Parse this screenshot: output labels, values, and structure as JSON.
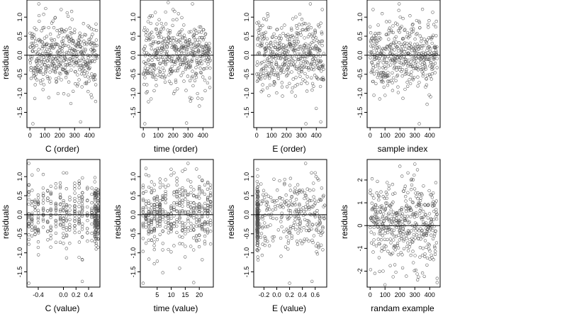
{
  "chart_data": [
    {
      "type": "scatter",
      "xlabel": "C (order)",
      "ylabel": "residuals",
      "xlim": [
        -20,
        470
      ],
      "ylim": [
        -1.9,
        1.45
      ],
      "xticks": [
        0,
        100,
        200,
        300,
        400
      ],
      "yticks": [
        -1.5,
        -1.0,
        -0.5,
        0.0,
        0.5,
        1.0
      ],
      "ytick_labels": [
        "-1.5",
        "-1.0",
        "-0.5",
        "0.0",
        "0.5",
        "1.0"
      ],
      "hline": 0,
      "cloud": {
        "seed": 11,
        "n": 440,
        "x_range": [
          0,
          450
        ],
        "mean": 0.0,
        "sd": 0.45,
        "pattern": "order",
        "extremes": [
          [
            20,
            -1.8
          ],
          [
            340,
            -1.75
          ],
          [
            60,
            1.35
          ],
          [
            210,
            1.2
          ],
          [
            280,
            1.15
          ]
        ]
      }
    },
    {
      "type": "scatter",
      "xlabel": "time (order)",
      "ylabel": "residuals",
      "xlim": [
        -20,
        470
      ],
      "ylim": [
        -1.9,
        1.45
      ],
      "xticks": [
        0,
        100,
        200,
        300,
        400
      ],
      "yticks": [
        -1.5,
        -1.0,
        -0.5,
        0.0,
        0.5,
        1.0
      ],
      "ytick_labels": [
        "-1.5",
        "-1.0",
        "-0.5",
        "0.0",
        "0.5",
        "1.0"
      ],
      "hline": 0,
      "cloud": {
        "seed": 23,
        "n": 440,
        "x_range": [
          0,
          450
        ],
        "mean": 0.0,
        "sd": 0.45,
        "pattern": "order",
        "extremes": [
          [
            10,
            -1.8
          ],
          [
            290,
            -1.78
          ],
          [
            330,
            1.35
          ],
          [
            200,
            1.2
          ]
        ]
      }
    },
    {
      "type": "scatter",
      "xlabel": "E (order)",
      "ylabel": "residuals",
      "xlim": [
        -20,
        470
      ],
      "ylim": [
        -1.9,
        1.45
      ],
      "xticks": [
        0,
        100,
        200,
        300,
        400
      ],
      "yticks": [
        -1.5,
        -1.0,
        -0.5,
        0.0,
        0.5,
        1.0
      ],
      "ytick_labels": [
        "-1.5",
        "-1.0",
        "-0.5",
        "0.0",
        "0.5",
        "1.0"
      ],
      "hline": 0,
      "cloud": {
        "seed": 37,
        "n": 440,
        "x_range": [
          0,
          450
        ],
        "mean": 0.0,
        "sd": 0.45,
        "pattern": "order",
        "extremes": [
          [
            330,
            -1.8
          ],
          [
            430,
            -1.75
          ],
          [
            360,
            1.35
          ],
          [
            440,
            1.2
          ]
        ]
      }
    },
    {
      "type": "scatter",
      "xlabel": "sample index",
      "ylabel": "residuals",
      "xlim": [
        -20,
        470
      ],
      "ylim": [
        -1.9,
        1.45
      ],
      "xticks": [
        0,
        100,
        200,
        300,
        400
      ],
      "yticks": [
        -1.5,
        -1.0,
        -0.5,
        0.0,
        0.5,
        1.0
      ],
      "ytick_labels": [
        "-1.5",
        "-1.0",
        "-0.5",
        "0.0",
        "0.5",
        "1.0"
      ],
      "hline": 0,
      "cloud": {
        "seed": 41,
        "n": 440,
        "x_range": [
          0,
          450
        ],
        "mean": 0.0,
        "sd": 0.45,
        "pattern": "order",
        "extremes": [
          [
            330,
            -1.8
          ],
          [
            195,
            1.35
          ],
          [
            20,
            1.2
          ]
        ]
      }
    },
    {
      "type": "scatter",
      "xlabel": "C (value)",
      "ylabel": "residuals",
      "xlim": [
        -0.58,
        0.58
      ],
      "ylim": [
        -1.9,
        1.45
      ],
      "xticks": [
        -0.4,
        0.0,
        0.2,
        0.4
      ],
      "xtick_labels": [
        "-0.4",
        "0.0",
        "0.2",
        "0.4"
      ],
      "yticks": [
        -1.5,
        -1.0,
        -0.5,
        0.0,
        0.5,
        1.0
      ],
      "ytick_labels": [
        "-1.5",
        "-1.0",
        "-0.5",
        "0.0",
        "0.5",
        "1.0"
      ],
      "hline": 0,
      "cloud": {
        "seed": 53,
        "n": 440,
        "x_range": [
          -0.55,
          0.55
        ],
        "mean": 0.0,
        "sd": 0.45,
        "pattern": "columns",
        "columns": [
          -0.55,
          -0.5,
          -0.45,
          -0.4,
          -0.32,
          -0.25,
          -0.2,
          -0.12,
          -0.05,
          0.0,
          0.05,
          0.1,
          0.18,
          0.25,
          0.3,
          0.38,
          0.45,
          0.5,
          0.52,
          0.55
        ],
        "dense": [
          0.5,
          0.52,
          0.55
        ],
        "extremes": [
          [
            -0.55,
            -1.8
          ],
          [
            0.3,
            -1.75
          ],
          [
            -0.55,
            1.35
          ],
          [
            0.0,
            1.1
          ]
        ]
      }
    },
    {
      "type": "scatter",
      "xlabel": "time (value)",
      "ylabel": "residuals",
      "xlim": [
        -1,
        25
      ],
      "ylim": [
        -1.9,
        1.45
      ],
      "xticks": [
        5,
        10,
        15,
        20
      ],
      "yticks": [
        -1.5,
        -1.0,
        -0.5,
        0.0,
        0.5,
        1.0
      ],
      "ytick_labels": [
        "-1.5",
        "-1.0",
        "-0.5",
        "0.0",
        "0.5",
        "1.0"
      ],
      "hline": 0,
      "cloud": {
        "seed": 67,
        "n": 440,
        "x_range": [
          0,
          24
        ],
        "mean": 0.0,
        "sd": 0.45,
        "pattern": "columns",
        "columns": [
          0,
          1,
          2,
          3,
          4,
          5,
          6,
          7,
          8,
          9,
          10,
          11,
          12,
          13,
          14,
          15,
          16,
          17,
          18,
          19,
          20,
          21,
          22,
          23,
          24
        ],
        "dense": [],
        "extremes": [
          [
            0,
            -1.8
          ],
          [
            18,
            -1.78
          ],
          [
            16,
            1.35
          ],
          [
            11,
            1.1
          ]
        ]
      }
    },
    {
      "type": "scatter",
      "xlabel": "E (value)",
      "ylabel": "residuals",
      "xlim": [
        -0.36,
        0.78
      ],
      "ylim": [
        -1.9,
        1.45
      ],
      "xticks": [
        -0.2,
        0.0,
        0.2,
        0.4,
        0.6
      ],
      "xtick_labels": [
        "-0.2",
        "0.0",
        "0.2",
        "0.4",
        "0.6"
      ],
      "yticks": [
        -1.5,
        -1.0,
        -0.5,
        0.0,
        0.5,
        1.0
      ],
      "ytick_labels": [
        "-1.5",
        "-1.0",
        "-0.5",
        "0.0",
        "0.5",
        "1.0"
      ],
      "hline": 0,
      "cloud": {
        "seed": 79,
        "n": 440,
        "x_range": [
          -0.33,
          0.75
        ],
        "mean": 0.0,
        "sd": 0.45,
        "pattern": "skew",
        "dense_x": -0.3,
        "extremes": [
          [
            0.2,
            -1.8
          ],
          [
            0.55,
            -1.75
          ],
          [
            0.45,
            1.35
          ],
          [
            0.6,
            1.1
          ]
        ]
      }
    },
    {
      "type": "scatter",
      "xlabel": "randam example",
      "ylabel": "residuals",
      "xlim": [
        -20,
        470
      ],
      "ylim": [
        -2.7,
        2.9
      ],
      "xticks": [
        0,
        100,
        200,
        300,
        400
      ],
      "yticks": [
        -2,
        -1,
        0,
        1,
        2
      ],
      "ytick_labels": [
        "-2",
        "-1",
        "0",
        "1",
        "2"
      ],
      "hline": 0,
      "cloud": {
        "seed": 97,
        "n": 440,
        "x_range": [
          0,
          450
        ],
        "mean": 0.0,
        "sd": 1.0,
        "pattern": "order",
        "extremes": [
          [
            100,
            -2.6
          ],
          [
            200,
            2.6
          ],
          [
            300,
            2.7
          ],
          [
            450,
            -2.5
          ]
        ]
      }
    }
  ]
}
